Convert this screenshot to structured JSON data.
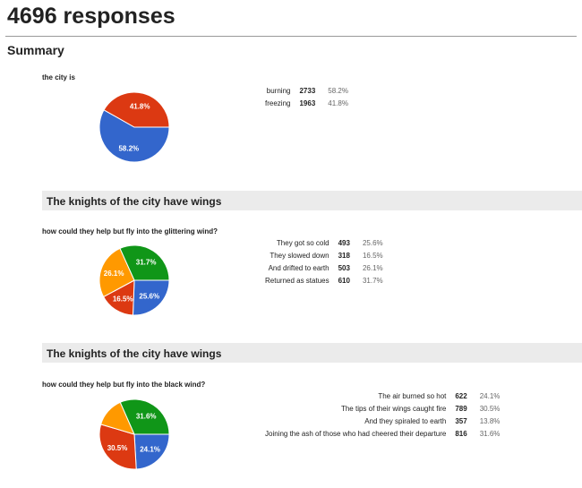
{
  "page_title": "4696 responses",
  "summary_label": "Summary",
  "colors": {
    "blue": "#3366cc",
    "red": "#dc3912",
    "orange": "#ff9900",
    "green": "#109618"
  },
  "questions": [
    {
      "section": "",
      "text": "the city is",
      "rows": [
        {
          "label": "burning",
          "count": "2733",
          "pct": "58.2%",
          "value": 58.2,
          "color": "#3366cc"
        },
        {
          "label": "freezing",
          "count": "1963",
          "pct": "41.8%",
          "value": 41.8,
          "color": "#dc3912"
        }
      ],
      "slice_labels": [
        "58.2%",
        "41.8%"
      ]
    },
    {
      "section": "The knights of the city have wings",
      "text": "how could they help but fly into the glittering wind?",
      "rows": [
        {
          "label": "They got so cold",
          "count": "493",
          "pct": "25.6%",
          "value": 25.6,
          "color": "#3366cc"
        },
        {
          "label": "They slowed down",
          "count": "318",
          "pct": "16.5%",
          "value": 16.5,
          "color": "#dc3912"
        },
        {
          "label": "And drifted to earth",
          "count": "503",
          "pct": "26.1%",
          "value": 26.1,
          "color": "#ff9900"
        },
        {
          "label": "Returned as statues",
          "count": "610",
          "pct": "31.7%",
          "value": 31.7,
          "color": "#109618"
        }
      ],
      "slice_labels": [
        "25.6%",
        "16.5%",
        "26.1%",
        "31.7%"
      ]
    },
    {
      "section": "The knights of the city have wings",
      "text": "how could they help but fly into the black wind?",
      "rows": [
        {
          "label": "The air burned so hot",
          "count": "622",
          "pct": "24.1%",
          "value": 24.1,
          "color": "#3366cc"
        },
        {
          "label": "The tips of their wings caught fire",
          "count": "789",
          "pct": "30.5%",
          "value": 30.5,
          "color": "#dc3912"
        },
        {
          "label": "And they spiraled to earth",
          "count": "357",
          "pct": "13.8%",
          "value": 13.8,
          "color": "#ff9900"
        },
        {
          "label": "Joining the ash of those who had cheered their departure",
          "count": "816",
          "pct": "31.6%",
          "value": 31.6,
          "color": "#109618"
        }
      ],
      "slice_labels": [
        "24.1%",
        "30.5%",
        "",
        "31.6%"
      ]
    }
  ],
  "chart_data": [
    {
      "type": "pie",
      "title": "the city is",
      "categories": [
        "burning",
        "freezing"
      ],
      "values": [
        58.2,
        41.8
      ]
    },
    {
      "type": "pie",
      "title": "how could they help but fly into the glittering wind?",
      "categories": [
        "They got so cold",
        "They slowed down",
        "And drifted to earth",
        "Returned as statues"
      ],
      "values": [
        25.6,
        16.5,
        26.1,
        31.7
      ]
    },
    {
      "type": "pie",
      "title": "how could they help but fly into the black wind?",
      "categories": [
        "The air burned so hot",
        "The tips of their wings caught fire",
        "And they spiraled to earth",
        "Joining the ash of those who had cheered their departure"
      ],
      "values": [
        24.1,
        30.5,
        13.8,
        31.6
      ]
    }
  ]
}
